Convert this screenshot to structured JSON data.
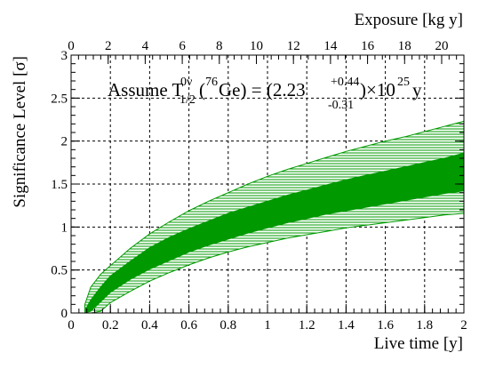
{
  "chart_data": {
    "type": "area",
    "title": "",
    "annotation": {
      "prefix": "Assume T",
      "t_sup": "0ν",
      "t_sub": "1/2",
      "open": "(",
      "mass_number": "76",
      "element": "Ge) = (2.23",
      "err_up": "+0.44",
      "err_down": "-0.31",
      "times": ")×10",
      "exponent": "25",
      "unit": " y"
    },
    "xlabel": "Live time [y]",
    "ylabel": "Significance Level [σ]",
    "x2label": "Exposure [kg y]",
    "xlim": [
      0,
      2
    ],
    "ylim": [
      0,
      3
    ],
    "x2lim": [
      0,
      21.2
    ],
    "xticks": [
      "0",
      "0.2",
      "0.4",
      "0.6",
      "0.8",
      "1",
      "1.2",
      "1.4",
      "1.6",
      "1.8",
      "2"
    ],
    "yticks": [
      "0",
      "0.5",
      "1",
      "1.5",
      "2",
      "2.5",
      "3"
    ],
    "x2ticks": [
      "0",
      "2",
      "4",
      "6",
      "8",
      "10",
      "12",
      "14",
      "16",
      "18",
      "20"
    ],
    "grid": true,
    "series_color": "#009900",
    "x": [
      0.07,
      0.1,
      0.15,
      0.2,
      0.3,
      0.4,
      0.5,
      0.6,
      0.7,
      0.8,
      0.9,
      1.0,
      1.1,
      1.2,
      1.3,
      1.4,
      1.5,
      1.6,
      1.7,
      1.8,
      1.9,
      2.0
    ],
    "bands": [
      {
        "style": "hatched",
        "upper": [
          0.1,
          0.3,
          0.45,
          0.55,
          0.75,
          0.92,
          1.06,
          1.19,
          1.3,
          1.4,
          1.5,
          1.59,
          1.67,
          1.74,
          1.81,
          1.88,
          1.94,
          2.0,
          2.05,
          2.11,
          2.17,
          2.23
        ],
        "lower": [
          0.0,
          0.0,
          0.02,
          0.12,
          0.25,
          0.37,
          0.47,
          0.56,
          0.64,
          0.71,
          0.77,
          0.82,
          0.87,
          0.91,
          0.95,
          0.99,
          1.02,
          1.05,
          1.08,
          1.11,
          1.14,
          1.16
        ]
      },
      {
        "style": "solid",
        "upper": [
          0.03,
          0.15,
          0.3,
          0.43,
          0.6,
          0.76,
          0.88,
          0.98,
          1.07,
          1.16,
          1.23,
          1.3,
          1.37,
          1.43,
          1.49,
          1.55,
          1.6,
          1.65,
          1.7,
          1.75,
          1.8,
          1.86
        ],
        "lower": [
          0.0,
          0.02,
          0.13,
          0.24,
          0.39,
          0.51,
          0.61,
          0.71,
          0.79,
          0.86,
          0.93,
          0.99,
          1.05,
          1.1,
          1.15,
          1.19,
          1.23,
          1.27,
          1.31,
          1.35,
          1.39,
          1.42
        ]
      }
    ]
  }
}
